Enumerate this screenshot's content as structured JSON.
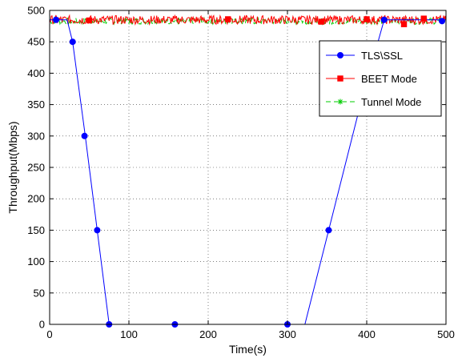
{
  "chart_data": {
    "type": "line",
    "xlabel": "Time(s)",
    "ylabel": "Throughput(Mbps)",
    "xlim": [
      0,
      500
    ],
    "ylim": [
      0,
      500
    ],
    "xticks": [
      0,
      100,
      200,
      300,
      400,
      500
    ],
    "yticks": [
      0,
      50,
      100,
      150,
      200,
      250,
      300,
      350,
      400,
      450,
      500
    ],
    "grid": true,
    "legend_position": "top-right",
    "series": [
      {
        "name": "TLS\\SSL",
        "color": "#0000ff",
        "marker": "circle",
        "line": "solid",
        "x": [
          0,
          22,
          29,
          45,
          60,
          75,
          158,
          300,
          322,
          352,
          392,
          422,
          500
        ],
        "y": [
          485,
          485,
          450,
          300,
          150,
          0,
          0,
          0,
          0,
          150,
          350,
          485,
          485
        ],
        "marker_x": [
          8,
          29,
          44,
          60,
          75,
          158,
          300,
          352,
          391,
          422,
          495
        ],
        "marker_y": [
          485,
          450,
          300,
          150,
          0,
          0,
          0,
          150,
          350,
          485,
          483
        ]
      },
      {
        "name": "BEET Mode",
        "color": "#ff0000",
        "marker": "square",
        "line": "solid",
        "base": 485,
        "noise": 7,
        "marker_x": [
          50,
          225,
          343,
          400,
          447,
          472
        ],
        "marker_y": [
          484,
          486,
          482,
          486,
          478,
          487
        ]
      },
      {
        "name": "Tunnel Mode",
        "color": "#00cc00",
        "marker": "star",
        "line": "dashed",
        "base": 483,
        "noise": 5,
        "marker_x": [],
        "marker_y": []
      }
    ]
  }
}
